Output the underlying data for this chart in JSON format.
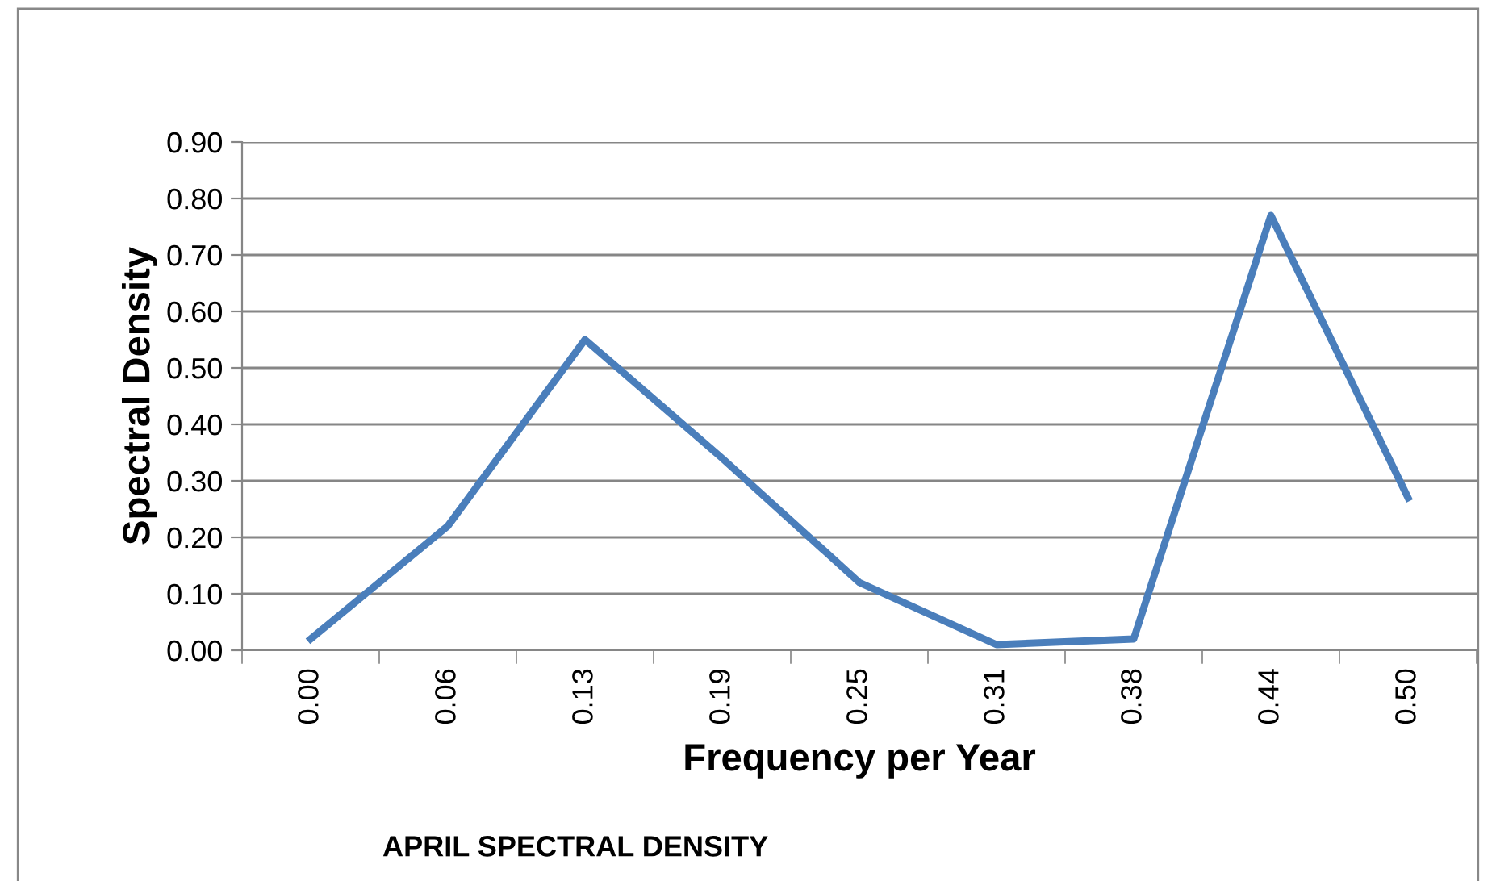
{
  "chart_data": {
    "type": "line",
    "title": "APRIL SPECTRAL DENSITY",
    "xlabel": "Frequency per Year",
    "ylabel": "Spectral Density",
    "categories": [
      "0.00",
      "0.06",
      "0.13",
      "0.19",
      "0.25",
      "0.31",
      "0.38",
      "0.44",
      "0.50"
    ],
    "series": [
      {
        "color": "#4a7ebb",
        "values": [
          0.02,
          0.22,
          0.55,
          0.34,
          0.12,
          0.01,
          0.02,
          0.77,
          0.27
        ]
      }
    ],
    "ylim": [
      0,
      0.9
    ],
    "yticks": [
      {
        "value": 0,
        "label": "0.00"
      },
      {
        "value": 0.1,
        "label": "0.10"
      },
      {
        "value": 0.2,
        "label": "0.20"
      },
      {
        "value": 0.3,
        "label": "0.30"
      },
      {
        "value": 0.4,
        "label": "0.40"
      },
      {
        "value": 0.5,
        "label": "0.50"
      },
      {
        "value": 0.6,
        "label": "0.60"
      },
      {
        "value": 0.7,
        "label": "0.70"
      },
      {
        "value": 0.8,
        "label": "0.80"
      },
      {
        "value": 0.9,
        "label": "0.90"
      }
    ],
    "grid": "y",
    "marker": "none",
    "line_style": "solid",
    "legend": false
  }
}
